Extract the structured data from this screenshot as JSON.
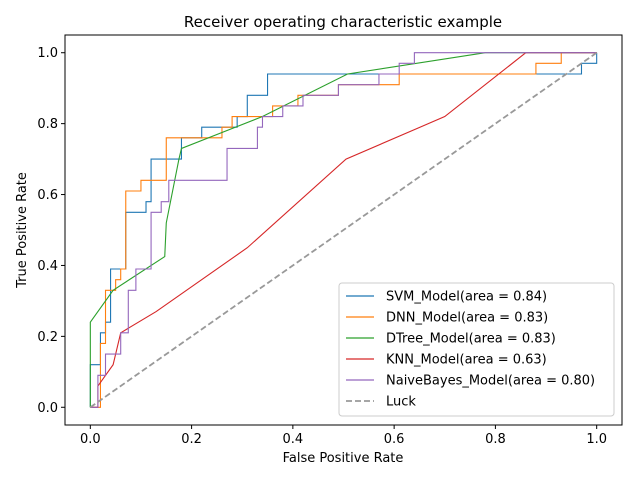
{
  "chart_data": {
    "type": "line",
    "title": "Receiver operating characteristic example",
    "xlabel": "False Positive Rate",
    "ylabel": "True Positive Rate",
    "xlim": [
      -0.05,
      1.05
    ],
    "ylim": [
      -0.05,
      1.05
    ],
    "xticks": [
      "0.0",
      "0.2",
      "0.4",
      "0.6",
      "0.8",
      "1.0"
    ],
    "yticks": [
      "0.0",
      "0.2",
      "0.4",
      "0.6",
      "0.8",
      "1.0"
    ],
    "grid": false,
    "legend_position": "lower-right",
    "series": [
      {
        "name": "SVM_Model(area = 0.84)",
        "color": "#1f77b4",
        "style": "solid",
        "x": [
          0.0,
          0.0,
          0.0,
          0.02,
          0.02,
          0.03,
          0.03,
          0.04,
          0.04,
          0.05,
          0.05,
          0.07,
          0.07,
          0.09,
          0.09,
          0.11,
          0.11,
          0.12,
          0.12,
          0.18,
          0.18,
          0.22,
          0.22,
          0.29,
          0.29,
          0.31,
          0.31,
          0.33,
          0.33,
          0.35,
          0.35,
          0.57,
          0.57,
          0.95,
          0.95,
          0.97,
          0.97,
          1.0,
          1.0
        ],
        "y": [
          0.0,
          0.12,
          0.12,
          0.12,
          0.21,
          0.21,
          0.24,
          0.24,
          0.39,
          0.39,
          0.39,
          0.39,
          0.55,
          0.55,
          0.55,
          0.55,
          0.58,
          0.58,
          0.7,
          0.7,
          0.76,
          0.76,
          0.79,
          0.79,
          0.82,
          0.82,
          0.88,
          0.88,
          0.88,
          0.88,
          0.94,
          0.94,
          0.94,
          0.94,
          0.94,
          0.94,
          0.97,
          0.97,
          1.0
        ]
      },
      {
        "name": "DNN_Model(area = 0.83)",
        "color": "#ff7f0e",
        "style": "solid",
        "x": [
          0.0,
          0.02,
          0.02,
          0.03,
          0.03,
          0.05,
          0.05,
          0.06,
          0.06,
          0.07,
          0.07,
          0.1,
          0.1,
          0.12,
          0.12,
          0.15,
          0.15,
          0.18,
          0.18,
          0.26,
          0.26,
          0.28,
          0.28,
          0.36,
          0.36,
          0.41,
          0.41,
          0.47,
          0.47,
          0.49,
          0.49,
          0.61,
          0.61,
          0.88,
          0.88,
          0.93,
          0.93,
          1.0
        ],
        "y": [
          0.0,
          0.0,
          0.18,
          0.18,
          0.33,
          0.33,
          0.36,
          0.36,
          0.39,
          0.39,
          0.61,
          0.61,
          0.64,
          0.64,
          0.64,
          0.64,
          0.76,
          0.76,
          0.76,
          0.76,
          0.79,
          0.79,
          0.82,
          0.82,
          0.85,
          0.85,
          0.88,
          0.88,
          0.88,
          0.88,
          0.91,
          0.91,
          0.94,
          0.94,
          0.97,
          0.97,
          1.0,
          1.0
        ]
      },
      {
        "name": "DTree_Model(area = 0.83)",
        "color": "#2ca02c",
        "style": "solid",
        "x": [
          0.0,
          0.0,
          0.045,
          0.147,
          0.15,
          0.175,
          0.18,
          0.34,
          0.508,
          0.78,
          1.0
        ],
        "y": [
          0.0,
          0.24,
          0.33,
          0.425,
          0.52,
          0.7,
          0.73,
          0.82,
          0.94,
          1.0,
          1.0
        ]
      },
      {
        "name": "KNN_Model(area = 0.63)",
        "color": "#d62728",
        "style": "solid",
        "x": [
          0.0,
          0.015,
          0.015,
          0.045,
          0.06,
          0.13,
          0.31,
          0.505,
          0.7,
          0.86,
          1.0
        ],
        "y": [
          0.0,
          0.0,
          0.06,
          0.12,
          0.21,
          0.27,
          0.45,
          0.7,
          0.82,
          1.0,
          1.0
        ]
      },
      {
        "name": "NaiveBayes_Model(area = 0.80)",
        "color": "#9467bd",
        "style": "solid",
        "x": [
          0.0,
          0.015,
          0.015,
          0.03,
          0.03,
          0.06,
          0.06,
          0.075,
          0.075,
          0.09,
          0.09,
          0.12,
          0.12,
          0.13,
          0.13,
          0.14,
          0.14,
          0.155,
          0.155,
          0.27,
          0.27,
          0.33,
          0.33,
          0.34,
          0.34,
          0.36,
          0.36,
          0.38,
          0.38,
          0.42,
          0.42,
          0.45,
          0.45,
          0.49,
          0.49,
          0.57,
          0.57,
          0.61,
          0.61,
          0.64,
          0.64,
          1.0
        ],
        "y": [
          0.0,
          0.0,
          0.09,
          0.09,
          0.15,
          0.15,
          0.21,
          0.21,
          0.33,
          0.33,
          0.39,
          0.39,
          0.55,
          0.55,
          0.55,
          0.55,
          0.58,
          0.58,
          0.64,
          0.64,
          0.73,
          0.73,
          0.79,
          0.79,
          0.82,
          0.82,
          0.82,
          0.82,
          0.85,
          0.85,
          0.88,
          0.88,
          0.88,
          0.88,
          0.91,
          0.91,
          0.94,
          0.94,
          0.97,
          0.97,
          1.0,
          1.0
        ]
      },
      {
        "name": "Luck",
        "color": "#999999",
        "style": "dashed",
        "x": [
          0.0,
          1.0
        ],
        "y": [
          0.0,
          1.0
        ]
      }
    ]
  }
}
